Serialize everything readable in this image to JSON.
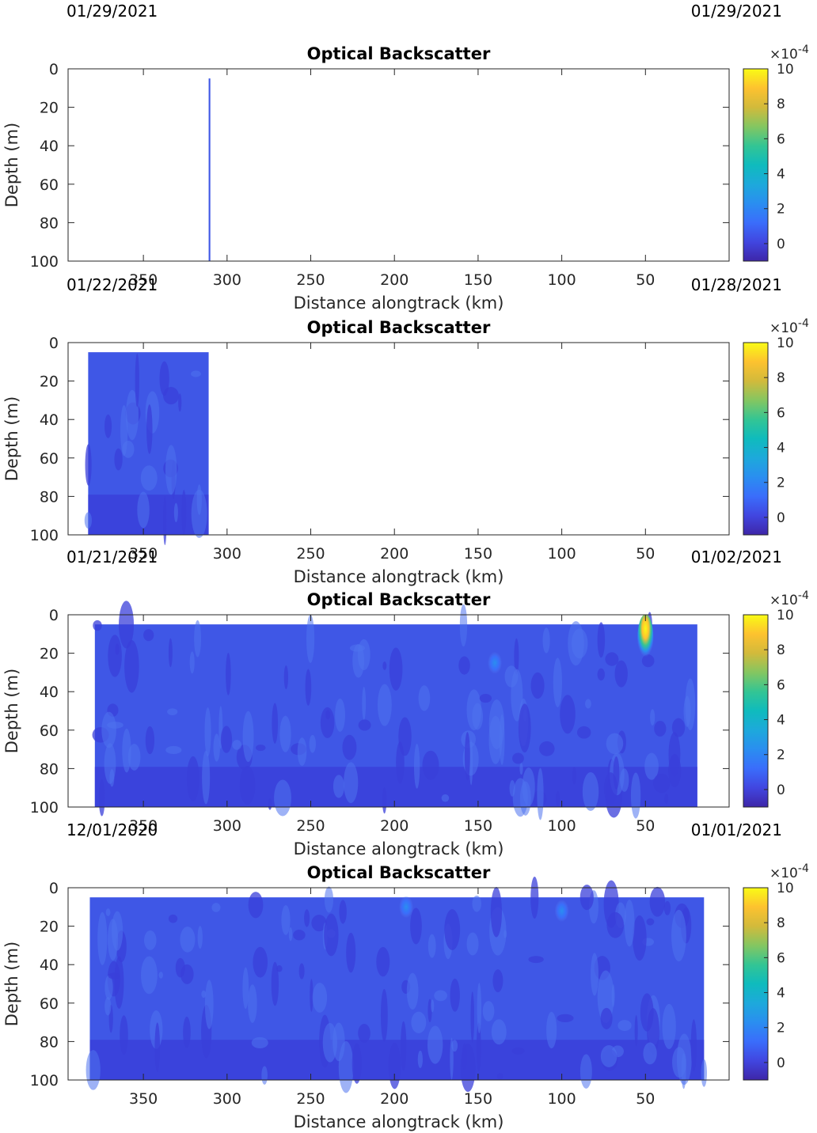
{
  "chart_data": [
    {
      "type": "heatmap",
      "title": "Optical Backscatter",
      "xlabel": "Distance alongtrack (km)",
      "ylabel": "Depth (m)",
      "xlim": [
        395,
        0
      ],
      "ylim": [
        0,
        100
      ],
      "xticks": [
        350,
        300,
        250,
        200,
        150,
        100,
        50
      ],
      "yticks": [
        0,
        20,
        40,
        60,
        80,
        100
      ],
      "date_left": "01/29/2021",
      "date_right": "01/29/2021",
      "colorbar": {
        "exponent": "×10^-4",
        "ticks": [
          0,
          2,
          4,
          6,
          8,
          10
        ],
        "range": [
          -1,
          10
        ]
      },
      "data_extent": {
        "x": [
          311,
          310
        ],
        "depth": [
          5,
          100
        ]
      },
      "typical_value": 0.4
    },
    {
      "type": "heatmap",
      "title": "Optical Backscatter",
      "xlabel": "Distance alongtrack (km)",
      "ylabel": "Depth (m)",
      "xlim": [
        395,
        0
      ],
      "ylim": [
        0,
        100
      ],
      "xticks": [
        350,
        300,
        250,
        200,
        150,
        100,
        50
      ],
      "yticks": [
        0,
        20,
        40,
        60,
        80,
        100
      ],
      "date_left": "01/22/2021",
      "date_right": "01/28/2021",
      "colorbar": {
        "exponent": "×10^-4",
        "ticks": [
          0,
          2,
          4,
          6,
          8,
          10
        ],
        "range": [
          -1,
          10
        ]
      },
      "data_extent": {
        "x": [
          383,
          311
        ],
        "depth": [
          5,
          100
        ]
      },
      "typical_value": 0.4
    },
    {
      "type": "heatmap",
      "title": "Optical Backscatter",
      "xlabel": "Distance alongtrack (km)",
      "ylabel": "Depth (m)",
      "xlim": [
        395,
        0
      ],
      "ylim": [
        0,
        100
      ],
      "xticks": [
        350,
        300,
        250,
        200,
        150,
        100,
        50
      ],
      "yticks": [
        0,
        20,
        40,
        60,
        80,
        100
      ],
      "date_left": "01/21/2021",
      "date_right": "01/02/2021",
      "colorbar": {
        "exponent": "×10^-4",
        "ticks": [
          0,
          2,
          4,
          6,
          8,
          10
        ],
        "range": [
          -1,
          10
        ]
      },
      "data_extent": {
        "x": [
          379,
          19
        ],
        "depth": [
          5,
          100
        ]
      },
      "typical_value": 0.4,
      "hotspots": [
        {
          "x": 50,
          "depth": 8,
          "value": 10
        },
        {
          "x": 140,
          "depth": 25,
          "value": 2
        }
      ]
    },
    {
      "type": "heatmap",
      "title": "Optical Backscatter",
      "xlabel": "Distance alongtrack (km)",
      "ylabel": "Depth (m)",
      "xlim": [
        395,
        0
      ],
      "ylim": [
        0,
        100
      ],
      "xticks": [
        350,
        300,
        250,
        200,
        150,
        100,
        50
      ],
      "yticks": [
        0,
        20,
        40,
        60,
        80,
        100
      ],
      "date_left": "12/01/2020",
      "date_right": "01/01/2021",
      "colorbar": {
        "exponent": "×10^-4",
        "ticks": [
          0,
          2,
          4,
          6,
          8,
          10
        ],
        "range": [
          -1,
          10
        ]
      },
      "data_extent": {
        "x": [
          382,
          15
        ],
        "depth": [
          5,
          100
        ]
      },
      "typical_value": 0.4,
      "hotspots": [
        {
          "x": 100,
          "depth": 12,
          "value": 2
        },
        {
          "x": 193,
          "depth": 10,
          "value": 1.5
        }
      ]
    }
  ],
  "colors": {
    "background_field": "#3f57e6",
    "deep_field": "#3a3fd9",
    "light_patch": "#4e73ee",
    "hot": "#f7e325"
  }
}
